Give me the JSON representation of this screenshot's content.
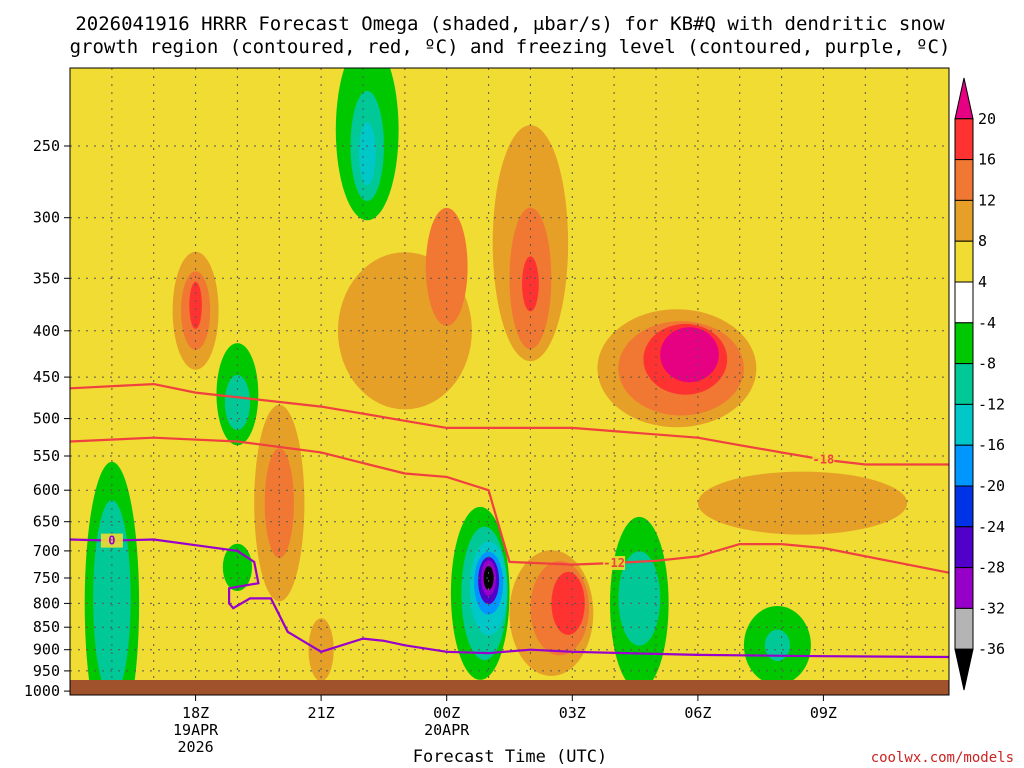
{
  "chart_data": {
    "type": "heatmap",
    "title_line1": "2026041916 HRRR Forecast Omega (shaded, μbar/s) for KB#Q with dendritic snow",
    "title_line2": "growth region (contoured, red, ºC) and freezing level (contoured, purple, ºC)",
    "xlabel": "Forecast Time (UTC)",
    "credit": "coolwx.com/models",
    "y_axis": {
      "type": "log-pressure",
      "range_hpa": [
        1010,
        205
      ],
      "ticks": [
        "250",
        "300",
        "350",
        "400",
        "450",
        "500",
        "550",
        "600",
        "650",
        "700",
        "750",
        "800",
        "850",
        "900",
        "950",
        "1000"
      ]
    },
    "x_axis": {
      "range_hours": [
        -3,
        18
      ],
      "ticks": [
        {
          "hour": 0,
          "l1": "18Z",
          "l2": "19APR",
          "l3": "2026"
        },
        {
          "hour": 3,
          "l1": "21Z",
          "l2": "",
          "l3": ""
        },
        {
          "hour": 6,
          "l1": "00Z",
          "l2": "20APR",
          "l3": ""
        },
        {
          "hour": 9,
          "l1": "03Z",
          "l2": "",
          "l3": ""
        },
        {
          "hour": 12,
          "l1": "06Z",
          "l2": "",
          "l3": ""
        },
        {
          "hour": 15,
          "l1": "09Z",
          "l2": "",
          "l3": ""
        }
      ]
    },
    "colorbar": {
      "labels": [
        "20",
        "16",
        "12",
        "8",
        "4",
        "-4",
        "-8",
        "-12",
        "-16",
        "-20",
        "-24",
        "-28",
        "-32",
        "-36"
      ],
      "colors": [
        "#e60082",
        "#ff3232",
        "#f07832",
        "#e6a028",
        "#f0dc32",
        "#ffffff",
        "#00c800",
        "#00c896",
        "#00c8c8",
        "#0096ff",
        "#0032e6",
        "#5000c8",
        "#9600c8",
        "#b4b4b4",
        "#000000"
      ]
    },
    "omega_blobs": [
      {
        "cx": -2.0,
        "cy": 800,
        "rx": 0.65,
        "ry": 0.36,
        "v": -8
      },
      {
        "cx": -2.0,
        "cy": 790,
        "rx": 0.45,
        "ry": 0.25,
        "v": -12
      },
      {
        "cx": 1.0,
        "cy": 470,
        "rx": 0.5,
        "ry": 0.13,
        "v": -8
      },
      {
        "cx": 1.0,
        "cy": 480,
        "rx": 0.3,
        "ry": 0.07,
        "v": -12
      },
      {
        "cx": 1.0,
        "cy": 730,
        "rx": 0.35,
        "ry": 0.06,
        "v": -8
      },
      {
        "cx": 4.1,
        "cy": 240,
        "rx": 0.75,
        "ry": 0.23,
        "v": -8
      },
      {
        "cx": 4.1,
        "cy": 250,
        "rx": 0.4,
        "ry": 0.14,
        "v": -12
      },
      {
        "cx": 4.1,
        "cy": 255,
        "rx": 0.2,
        "ry": 0.08,
        "v": -16
      },
      {
        "cx": 6.8,
        "cy": 780,
        "rx": 0.7,
        "ry": 0.22,
        "v": -8
      },
      {
        "cx": 6.9,
        "cy": 780,
        "rx": 0.55,
        "ry": 0.17,
        "v": -12
      },
      {
        "cx": 7.0,
        "cy": 770,
        "rx": 0.45,
        "ry": 0.12,
        "v": -16
      },
      {
        "cx": 7.0,
        "cy": 760,
        "rx": 0.35,
        "ry": 0.08,
        "v": -20
      },
      {
        "cx": 7.0,
        "cy": 755,
        "rx": 0.25,
        "ry": 0.06,
        "v": -28
      },
      {
        "cx": 7.0,
        "cy": 750,
        "rx": 0.18,
        "ry": 0.045,
        "v": -32
      },
      {
        "cx": 7.0,
        "cy": 750,
        "rx": 0.12,
        "ry": 0.03,
        "v": -36
      },
      {
        "cx": 10.6,
        "cy": 800,
        "rx": 0.7,
        "ry": 0.22,
        "v": -8
      },
      {
        "cx": 10.6,
        "cy": 790,
        "rx": 0.5,
        "ry": 0.12,
        "v": -12
      },
      {
        "cx": 13.9,
        "cy": 890,
        "rx": 0.8,
        "ry": 0.1,
        "v": -8
      },
      {
        "cx": 13.9,
        "cy": 890,
        "rx": 0.3,
        "ry": 0.04,
        "v": -12
      },
      {
        "cx": -1.0,
        "cy": 360,
        "rx": 0.8,
        "ry": 0.25,
        "v": 4
      },
      {
        "cx": 0.0,
        "cy": 380,
        "rx": 0.55,
        "ry": 0.15,
        "v": 8
      },
      {
        "cx": 0.0,
        "cy": 380,
        "rx": 0.35,
        "ry": 0.1,
        "v": 12
      },
      {
        "cx": 0.0,
        "cy": 375,
        "rx": 0.15,
        "ry": 0.06,
        "v": 16
      },
      {
        "cx": 6.5,
        "cy": 370,
        "rx": 4.0,
        "ry": 0.26,
        "v": 4
      },
      {
        "cx": 7.5,
        "cy": 600,
        "rx": 5.5,
        "ry": 0.15,
        "v": 4
      },
      {
        "cx": 5.0,
        "cy": 400,
        "rx": 1.6,
        "ry": 0.2,
        "v": 8
      },
      {
        "cx": 8.0,
        "cy": 320,
        "rx": 0.9,
        "ry": 0.3,
        "v": 8
      },
      {
        "cx": 8.0,
        "cy": 350,
        "rx": 0.5,
        "ry": 0.18,
        "v": 12
      },
      {
        "cx": 8.0,
        "cy": 355,
        "rx": 0.2,
        "ry": 0.07,
        "v": 16
      },
      {
        "cx": 6.0,
        "cy": 340,
        "rx": 0.5,
        "ry": 0.15,
        "v": 12
      },
      {
        "cx": 11.5,
        "cy": 440,
        "rx": 1.9,
        "ry": 0.15,
        "v": 8
      },
      {
        "cx": 11.6,
        "cy": 440,
        "rx": 1.5,
        "ry": 0.12,
        "v": 12
      },
      {
        "cx": 11.7,
        "cy": 430,
        "rx": 1.0,
        "ry": 0.09,
        "v": 16
      },
      {
        "cx": 11.8,
        "cy": 425,
        "rx": 0.7,
        "ry": 0.07,
        "v": 20
      },
      {
        "cx": 2.0,
        "cy": 620,
        "rx": 0.6,
        "ry": 0.25,
        "v": 8
      },
      {
        "cx": 2.0,
        "cy": 620,
        "rx": 0.35,
        "ry": 0.14,
        "v": 12
      },
      {
        "cx": 3.0,
        "cy": 900,
        "rx": 0.3,
        "ry": 0.08,
        "v": 8
      },
      {
        "cx": 8.5,
        "cy": 820,
        "rx": 1.0,
        "ry": 0.16,
        "v": 8
      },
      {
        "cx": 8.7,
        "cy": 810,
        "rx": 0.7,
        "ry": 0.12,
        "v": 12
      },
      {
        "cx": 8.9,
        "cy": 800,
        "rx": 0.4,
        "ry": 0.08,
        "v": 16
      },
      {
        "cx": 14.5,
        "cy": 620,
        "rx": 2.5,
        "ry": 0.08,
        "v": 8
      }
    ],
    "contours": [
      {
        "name": "-18",
        "color": "#f04040",
        "label_index": 9,
        "points": [
          [
            -3,
            463
          ],
          [
            -1,
            458
          ],
          [
            0,
            468
          ],
          [
            3,
            485
          ],
          [
            6,
            512
          ],
          [
            9,
            512
          ],
          [
            12,
            525
          ],
          [
            13,
            535
          ],
          [
            14,
            545
          ],
          [
            15,
            555
          ],
          [
            16,
            562
          ],
          [
            18,
            562
          ]
        ]
      },
      {
        "name": "-12",
        "color": "#f04040",
        "label_index": 11,
        "points": [
          [
            -3,
            530
          ],
          [
            -1,
            525
          ],
          [
            1,
            530
          ],
          [
            3,
            545
          ],
          [
            4,
            560
          ],
          [
            5,
            575
          ],
          [
            6,
            580
          ],
          [
            7,
            600
          ],
          [
            7.3,
            670
          ],
          [
            7.5,
            720
          ],
          [
            9,
            725
          ],
          [
            10,
            722
          ],
          [
            11,
            718
          ],
          [
            12,
            710
          ],
          [
            13,
            688
          ],
          [
            14,
            688
          ],
          [
            15,
            695
          ],
          [
            18,
            740
          ]
        ]
      },
      {
        "name": "0",
        "color": "#9900cc",
        "label_index": 1,
        "points": [
          [
            -3,
            680
          ],
          [
            -2,
            682
          ],
          [
            -1,
            680
          ],
          [
            0,
            690
          ],
          [
            1,
            700
          ],
          [
            1.4,
            720
          ],
          [
            1.5,
            760
          ],
          [
            0.8,
            770
          ],
          [
            0.8,
            800
          ],
          [
            0.9,
            810
          ],
          [
            1.3,
            790
          ],
          [
            1.8,
            790
          ],
          [
            2.2,
            860
          ],
          [
            3.0,
            905
          ],
          [
            4,
            875
          ],
          [
            4.5,
            880
          ],
          [
            5,
            890
          ],
          [
            6,
            905
          ],
          [
            7,
            908
          ],
          [
            8,
            900
          ],
          [
            9,
            905
          ],
          [
            12,
            912
          ],
          [
            15,
            915
          ],
          [
            18,
            917
          ]
        ]
      }
    ]
  }
}
